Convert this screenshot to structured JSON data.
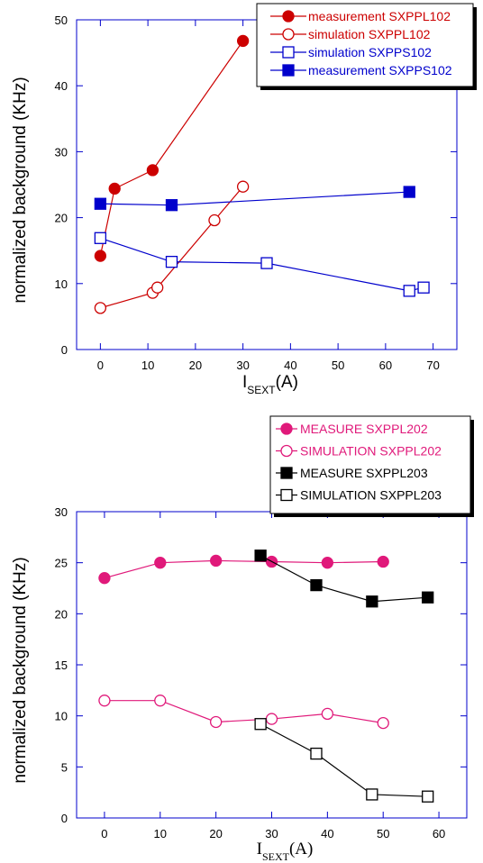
{
  "chart_data": [
    {
      "type": "line",
      "ylabel": "normalized background (KHz)",
      "xlabel_main": "I",
      "xlabel_sub": "SEXT",
      "xlabel_unit": "(A)",
      "xlim": [
        -5,
        75
      ],
      "ylim": [
        0,
        50
      ],
      "xticks": [
        0,
        10,
        20,
        30,
        40,
        50,
        60,
        70
      ],
      "yticks": [
        0,
        10,
        20,
        30,
        40,
        50
      ],
      "axis_color": "#0000cc",
      "legend_position": "top-right",
      "series": [
        {
          "name": "measurement SXPPL102",
          "color": "#cc0000",
          "marker": "circle",
          "filled": true,
          "x": [
            0,
            3,
            11,
            30
          ],
          "y": [
            14.2,
            24.4,
            27.2,
            46.8
          ]
        },
        {
          "name": "simulation SXPPL102",
          "color": "#cc0000",
          "marker": "circle",
          "filled": false,
          "x": [
            0,
            11,
            12,
            24,
            30
          ],
          "y": [
            6.3,
            8.6,
            9.4,
            19.6,
            24.7
          ]
        },
        {
          "name": "simulation SXPPS102",
          "color": "#0000cc",
          "marker": "square",
          "filled": false,
          "x": [
            0,
            15,
            35,
            65,
            68
          ],
          "y": [
            16.9,
            13.3,
            13.1,
            8.9,
            9.4
          ]
        },
        {
          "name": "measurement SXPPS102",
          "color": "#0000cc",
          "marker": "square",
          "filled": true,
          "x": [
            0,
            15,
            65
          ],
          "y": [
            22.1,
            21.9,
            23.9
          ]
        }
      ]
    },
    {
      "type": "line",
      "ylabel": "normalized background (KHz)",
      "xlabel_main": "I",
      "xlabel_sub": "SEXT",
      "xlabel_unit": "(A)",
      "xlim": [
        -5,
        65
      ],
      "ylim": [
        0,
        30
      ],
      "xticks": [
        0,
        10,
        20,
        30,
        40,
        50,
        60
      ],
      "yticks": [
        0,
        5,
        10,
        15,
        20,
        25,
        30
      ],
      "axis_color": "#0000cc",
      "legend_position": "top-right",
      "series": [
        {
          "name": "MEASURE SXPPL202",
          "color": "#e0197a",
          "marker": "circle",
          "filled": true,
          "x": [
            0,
            10,
            20,
            30,
            40,
            50
          ],
          "y": [
            23.5,
            25.0,
            25.2,
            25.1,
            25.0,
            25.1
          ]
        },
        {
          "name": "SIMULATION SXPPL202",
          "color": "#e0197a",
          "marker": "circle",
          "filled": false,
          "x": [
            0,
            10,
            20,
            30,
            40,
            50
          ],
          "y": [
            11.5,
            11.5,
            9.4,
            9.7,
            10.2,
            9.3
          ]
        },
        {
          "name": "MEASURE SXPPL203",
          "color": "#000000",
          "marker": "square",
          "filled": true,
          "x": [
            28,
            38,
            48,
            58
          ],
          "y": [
            25.7,
            22.8,
            21.2,
            21.6
          ]
        },
        {
          "name": "SIMULATION SXPPL203",
          "color": "#000000",
          "marker": "square",
          "filled": false,
          "x": [
            28,
            38,
            48,
            58
          ],
          "y": [
            9.2,
            6.3,
            2.3,
            2.1
          ]
        }
      ]
    }
  ]
}
